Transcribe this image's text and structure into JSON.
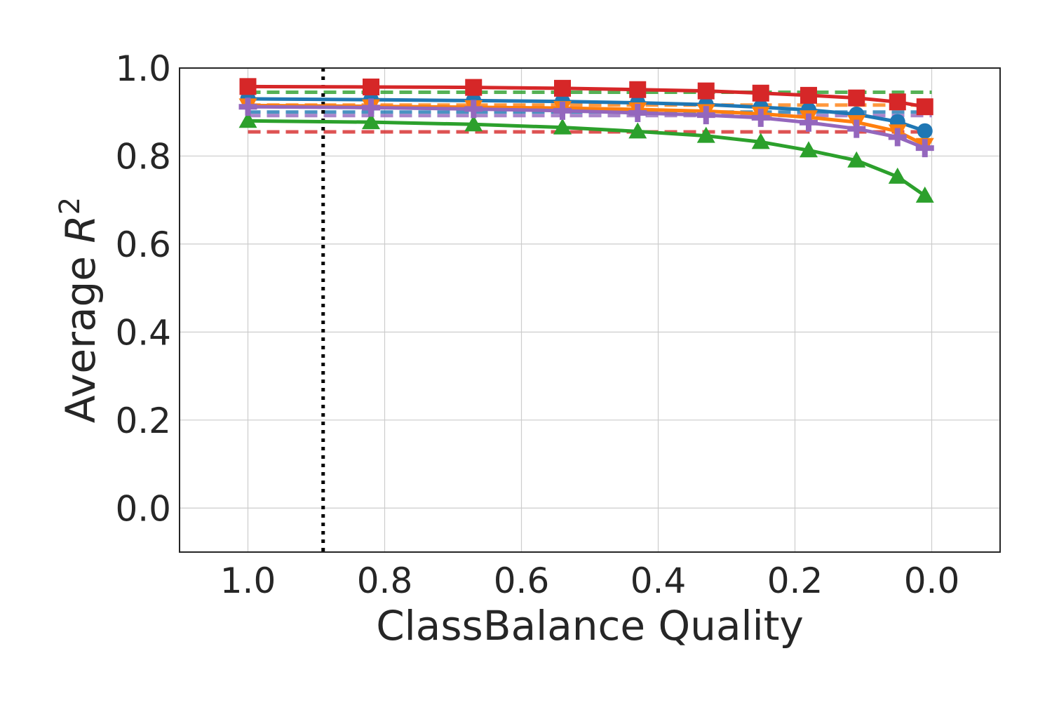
{
  "chart_data": {
    "type": "line",
    "title": "",
    "xlabel": "ClassBalance Quality",
    "ylabel": "Average R²",
    "ylabel_parts": {
      "main": "Average ",
      "italic": "R",
      "superscript": "2"
    },
    "xlim": [
      1.1,
      -0.1
    ],
    "ylim": [
      -0.1,
      1.0
    ],
    "x_inverted": true,
    "grid": true,
    "legend": "none",
    "x_ticks": [
      {
        "value": 1.0,
        "label": "1.0"
      },
      {
        "value": 0.8,
        "label": "0.8"
      },
      {
        "value": 0.6,
        "label": "0.6"
      },
      {
        "value": 0.4,
        "label": "0.4"
      },
      {
        "value": 0.2,
        "label": "0.2"
      },
      {
        "value": 0.0,
        "label": "0.0"
      }
    ],
    "y_ticks": [
      {
        "value": 0.0,
        "label": "0.0"
      },
      {
        "value": 0.2,
        "label": "0.2"
      },
      {
        "value": 0.4,
        "label": "0.4"
      },
      {
        "value": 0.6,
        "label": "0.6"
      },
      {
        "value": 0.8,
        "label": "0.8"
      },
      {
        "value": 1.0,
        "label": "1.0"
      }
    ],
    "x": [
      1.0,
      0.82,
      0.67,
      0.54,
      0.43,
      0.33,
      0.25,
      0.18,
      0.11,
      0.05,
      0.01
    ],
    "series": [
      {
        "color": "#1f77b4",
        "marker": "circle",
        "values": [
          0.93,
          0.928,
          0.926,
          0.924,
          0.921,
          0.917,
          0.911,
          0.905,
          0.895,
          0.878,
          0.857
        ]
      },
      {
        "color": "#ff7f0e",
        "marker": "triangle-down",
        "values": [
          0.915,
          0.913,
          0.911,
          0.909,
          0.906,
          0.902,
          0.896,
          0.888,
          0.877,
          0.856,
          0.825
        ]
      },
      {
        "color": "#2ca02c",
        "marker": "triangle-up",
        "values": [
          0.88,
          0.877,
          0.872,
          0.865,
          0.856,
          0.846,
          0.832,
          0.813,
          0.79,
          0.753,
          0.71
        ]
      },
      {
        "color": "#d62728",
        "marker": "square",
        "values": [
          0.958,
          0.957,
          0.956,
          0.954,
          0.951,
          0.948,
          0.943,
          0.938,
          0.932,
          0.923,
          0.912
        ]
      },
      {
        "color": "#9467bd",
        "marker": "plus",
        "values": [
          0.912,
          0.91,
          0.907,
          0.903,
          0.898,
          0.893,
          0.887,
          0.876,
          0.862,
          0.843,
          0.818
        ]
      }
    ],
    "reference_lines": [
      {
        "color": "#2ca02c",
        "value": 0.945,
        "style": "dashed"
      },
      {
        "color": "#ff7f0e",
        "value": 0.916,
        "style": "dashed"
      },
      {
        "color": "#1f77b4",
        "value": 0.9,
        "style": "dashed"
      },
      {
        "color": "#9467bd",
        "value": 0.892,
        "style": "dashed"
      },
      {
        "color": "#d62728",
        "value": 0.855,
        "style": "dashed"
      }
    ],
    "vertical_marker": {
      "value": 0.89,
      "color": "#000000",
      "style": "dotted"
    }
  }
}
